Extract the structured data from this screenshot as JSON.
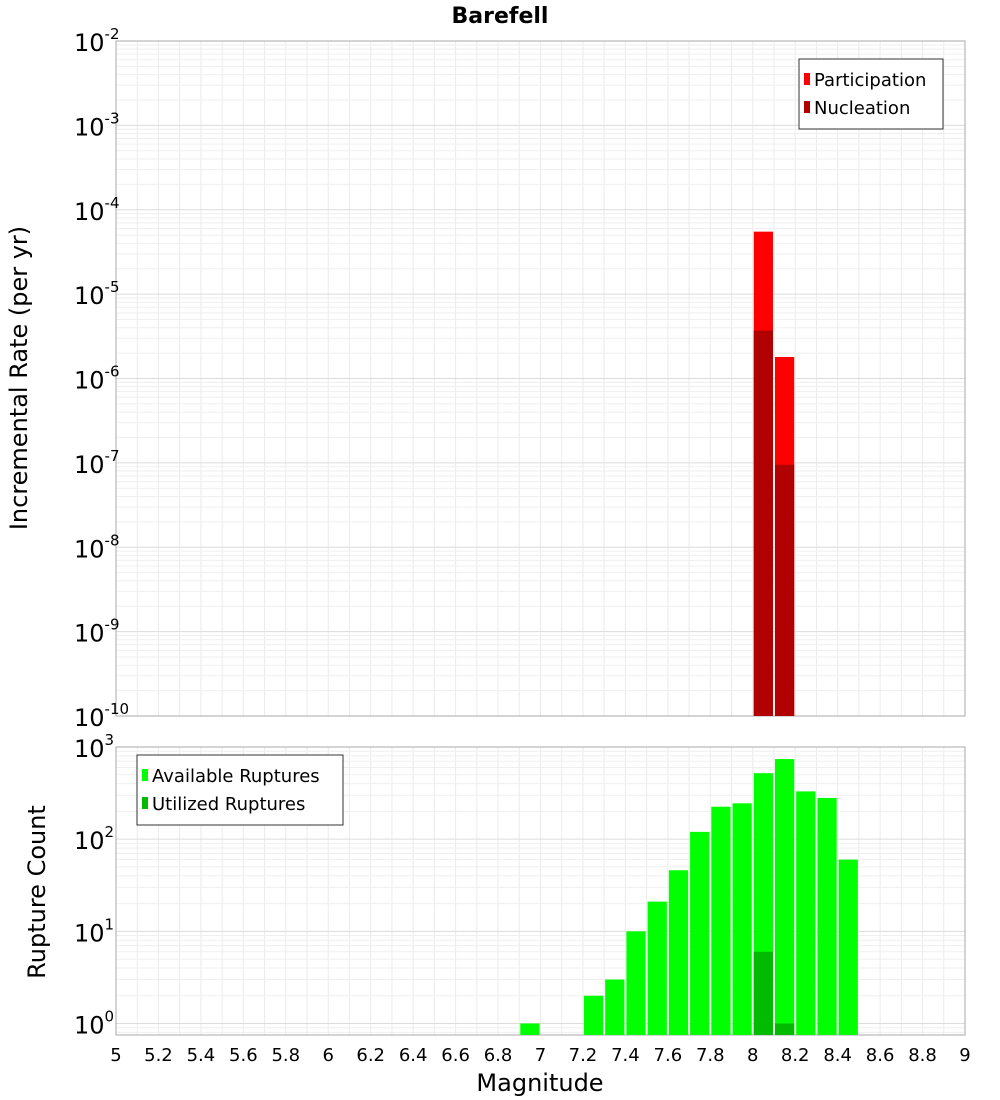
{
  "chart_data": [
    {
      "type": "bar",
      "title": "Barefell",
      "ylabel": "Incremental Rate (per yr)",
      "xlim": [
        5,
        9
      ],
      "ylim": [
        1e-10,
        0.01
      ],
      "yscale": "log",
      "y_tick_exponents": [
        "-2",
        "-3",
        "-4",
        "-5",
        "-6",
        "-7",
        "-8",
        "-9",
        "-10"
      ],
      "y_tick_base": "10",
      "bar_width": 0.1,
      "grid": true,
      "legend_position": "top-right",
      "series": [
        {
          "name": "Participation",
          "color": "#ff0000",
          "x": [
            8.05,
            8.15
          ],
          "values": [
            5.5e-05,
            1.8e-06
          ]
        },
        {
          "name": "Nucleation",
          "color": "#b00000",
          "x": [
            8.05,
            8.15
          ],
          "values": [
            3.7e-06,
            9.5e-08
          ]
        }
      ]
    },
    {
      "type": "bar",
      "xlabel": "Magnitude",
      "ylabel": "Rupture Count",
      "xlim": [
        5,
        9
      ],
      "ylim": [
        0.75,
        1000
      ],
      "yscale": "log",
      "y_tick_exponents": [
        "3",
        "2",
        "1",
        "0"
      ],
      "y_tick_base": "10",
      "x_ticks": [
        "5",
        "5.2",
        "5.4",
        "5.6",
        "5.8",
        "6",
        "6.2",
        "6.4",
        "6.6",
        "6.8",
        "7",
        "7.2",
        "7.4",
        "7.6",
        "7.8",
        "8",
        "8.2",
        "8.4",
        "8.6",
        "8.8",
        "9"
      ],
      "bar_width": 0.1,
      "grid": true,
      "legend_position": "top-left",
      "series": [
        {
          "name": "Available Ruptures",
          "color": "#00ff00",
          "x": [
            6.95,
            7.25,
            7.35,
            7.45,
            7.55,
            7.65,
            7.75,
            7.85,
            7.95,
            8.05,
            8.15,
            8.25,
            8.35,
            8.45
          ],
          "values": [
            1,
            2,
            3,
            10,
            21,
            46,
            120,
            225,
            245,
            520,
            740,
            330,
            280,
            60
          ]
        },
        {
          "name": "Utilized Ruptures",
          "color": "#00bb00",
          "x": [
            8.05,
            8.15
          ],
          "values": [
            6,
            1
          ]
        }
      ]
    }
  ]
}
